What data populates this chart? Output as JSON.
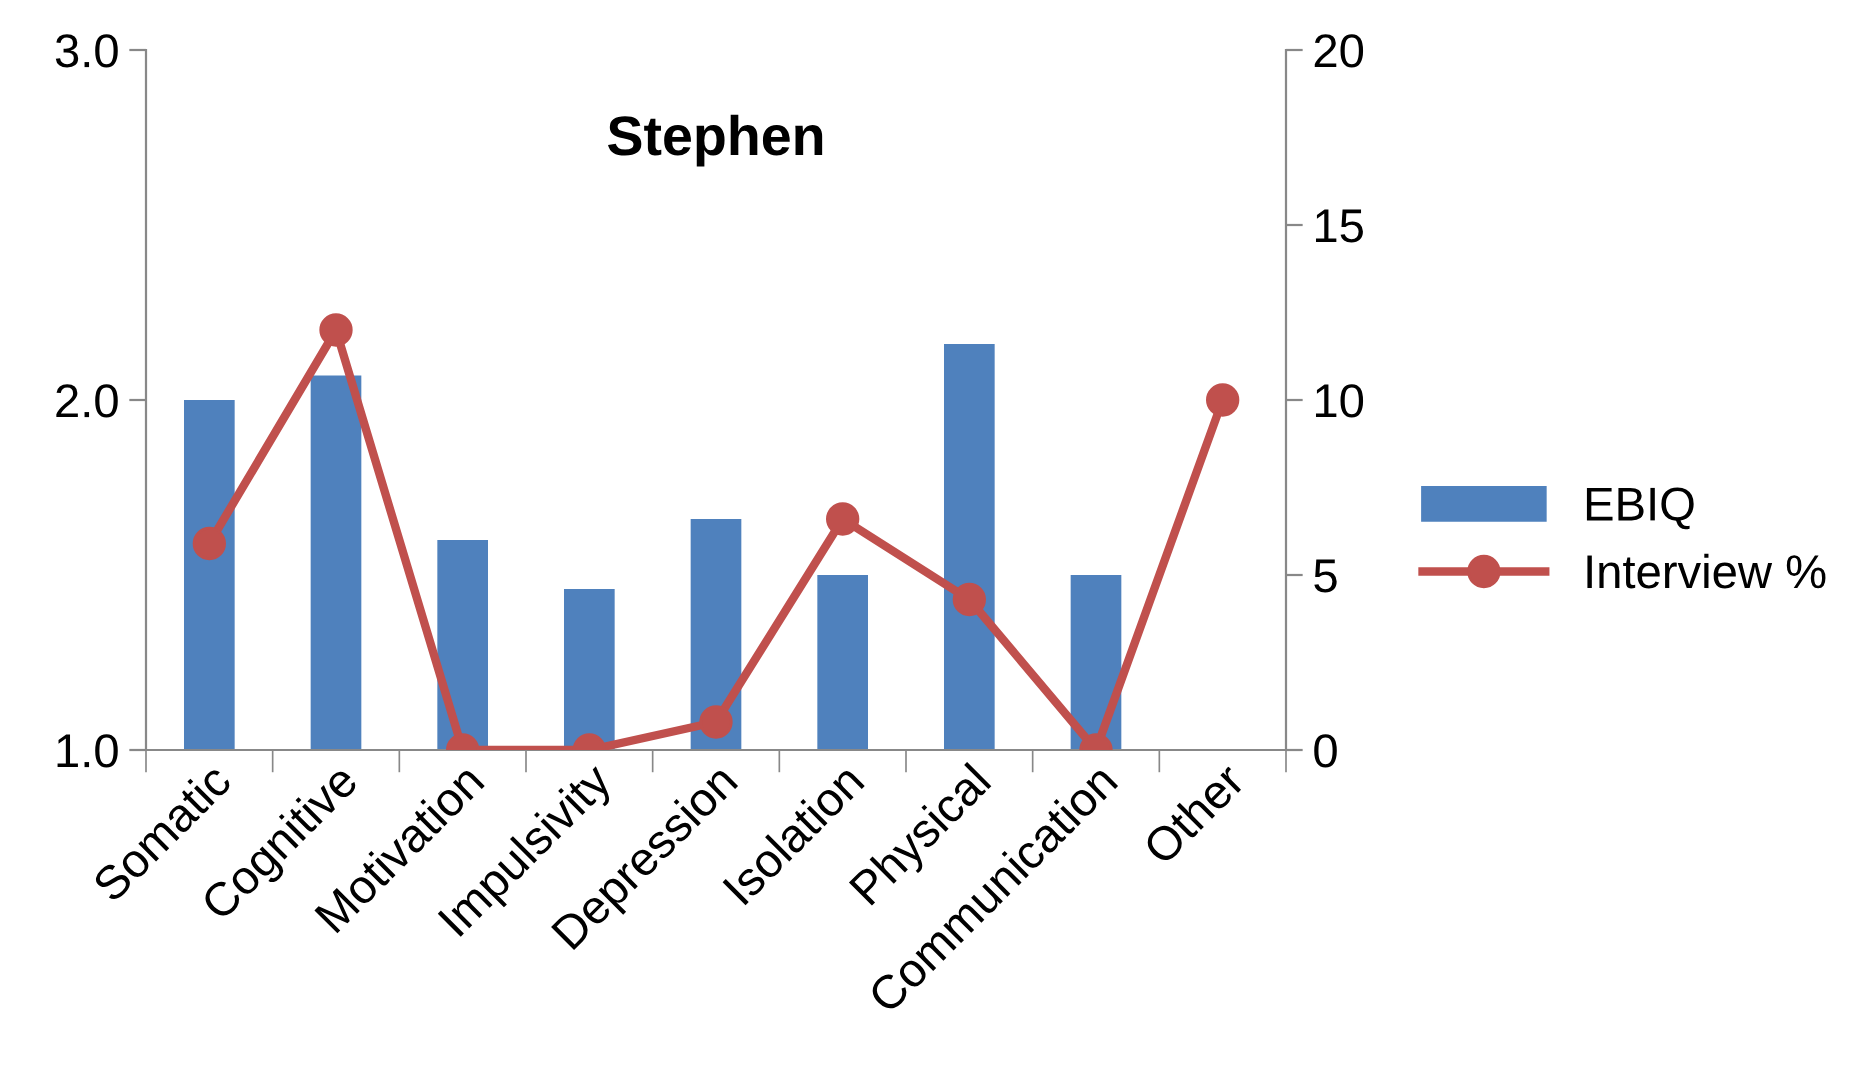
{
  "chart_data": {
    "type": "bar",
    "title": "Stephen",
    "categories": [
      "Somatic",
      "Cognitive",
      "Motivation",
      "Impulsivity",
      "Depression",
      "Isolation",
      "Physical",
      "Communication",
      "Other"
    ],
    "series": [
      {
        "name": "EBIQ",
        "color": "#4f81bd",
        "values": [
          2.0,
          2.07,
          1.6,
          1.46,
          1.66,
          1.5,
          2.16,
          1.5,
          null
        ]
      },
      {
        "name": "Interview %",
        "type": "line",
        "axis": "y2",
        "color": "#c0504d",
        "marker": "circle",
        "values": [
          5.9,
          12.0,
          0,
          0,
          0.8,
          6.6,
          4.3,
          0,
          10
        ]
      }
    ],
    "ylim": [
      1,
      3
    ],
    "yticks": [
      {
        "value": 1,
        "label": "1.0"
      },
      {
        "value": 2,
        "label": "2.0"
      },
      {
        "value": 3,
        "label": "3.0"
      }
    ],
    "y2lim": [
      0,
      20
    ],
    "y2ticks": [
      0,
      5,
      10,
      15,
      20
    ],
    "grid": false,
    "legend": "right"
  }
}
